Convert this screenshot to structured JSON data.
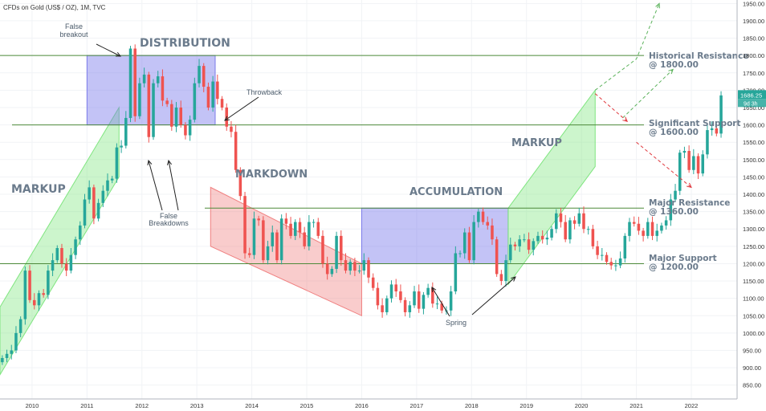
{
  "chart_data": {
    "type": "candlestick",
    "title": "CFDs on Gold (US$ / OZ), 1M, TVC",
    "y_axis": {
      "range": [
        810,
        1960
      ],
      "ticks": [
        1950,
        1900,
        1850,
        1800,
        1750,
        1700,
        1650,
        1600,
        1550,
        1500,
        1450,
        1400,
        1350,
        1300,
        1250,
        1200,
        1150,
        1100,
        1050,
        1000,
        950,
        900,
        850
      ],
      "tick_labels": [
        "1950.00",
        "1900.00",
        "1850.00",
        "1800.00",
        "1750.00",
        "1700.00",
        "1650.00",
        "1600.00",
        "1550.00",
        "1500.00",
        "1450.00",
        "1400.00",
        "1350.00",
        "1300.00",
        "1250.00",
        "1200.00",
        "1150.00",
        "1100.00",
        "1050.00",
        "1000.00",
        "950.00",
        "900.00",
        "850.00"
      ],
      "position": "right"
    },
    "x_axis": {
      "range": [
        "2009-06",
        "2022-11"
      ],
      "ticks": [
        "2010-01",
        "2011-01",
        "2012-01",
        "2013-01",
        "2014-01",
        "2015-01",
        "2016-01",
        "2017-01",
        "2018-01",
        "2019-01",
        "2020-01",
        "2021-01",
        "2022-01"
      ],
      "tick_labels": [
        "2010",
        "2011",
        "2012",
        "2013",
        "2014",
        "2015",
        "2016",
        "2017",
        "2018",
        "2019",
        "2020",
        "2021",
        "2022"
      ]
    },
    "last_price": {
      "label": "1686.25",
      "timer": "9d 3h",
      "value": 1686.25
    },
    "monthly_closes": [
      {
        "start": "2009-06",
        "closes": [
          928,
          940,
          950,
          1000,
          1040,
          1180,
          1095,
          1080,
          1115,
          1110,
          1180,
          1210,
          1245,
          1200,
          1180,
          1225,
          1270,
          1310,
          1385,
          1420,
          1330,
          1375,
          1410,
          1440,
          1445,
          1535,
          1540,
          1620,
          1820,
          1625,
          1720,
          1745,
          1565,
          1720,
          1740,
          1670,
          1660,
          1595,
          1650,
          1600,
          1570,
          1615,
          1720,
          1770,
          1710,
          1650,
          1725,
          1675,
          1650,
          1595,
          1580,
          1470,
          1395,
          1230,
          1225,
          1330,
          1325,
          1210,
          1250,
          1290,
          1210,
          1330,
          1315,
          1280,
          1320,
          1290,
          1250,
          1320,
          1320,
          1280,
          1200,
          1170,
          1185,
          1280,
          1210,
          1180,
          1205,
          1180,
          1180,
          1210,
          1160,
          1130,
          1080,
          1060,
          1100,
          1140,
          1120,
          1095,
          1060,
          1080,
          1120,
          1070,
          1110,
          1130,
          1085,
          1085,
          1065,
          1065,
          1120,
          1230,
          1230,
          1290,
          1210,
          1320,
          1350,
          1320,
          1310,
          1270,
          1170,
          1150,
          1210,
          1255,
          1250,
          1270,
          1270,
          1240,
          1265,
          1280,
          1270,
          1275,
          1300,
          1345,
          1320,
          1270,
          1325,
          1315,
          1345,
          1300,
          1300,
          1250,
          1225,
          1225,
          1205,
          1195,
          1195,
          1215,
          1280,
          1320,
          1315,
          1295,
          1280,
          1320,
          1280,
          1295,
          1310,
          1325,
          1385,
          1410,
          1520,
          1525,
          1470,
          1510,
          1460,
          1515,
          1585,
          1590,
          1575,
          1685
        ]
      }
    ],
    "horizontal_levels": [
      {
        "value": 1800,
        "label_lines": [
          "Historical Resistance",
          "@ 1800.00"
        ]
      },
      {
        "value": 1600,
        "label_lines": [
          "Significant Support",
          "@ 1600.00"
        ]
      },
      {
        "value": 1360,
        "label_lines": [
          "Major Resistance",
          "@ 1360.00"
        ]
      },
      {
        "value": 1200,
        "label_lines": [
          "Major Support",
          "@ 1200.00"
        ]
      }
    ],
    "phases": [
      {
        "label": "MARKUP",
        "kind": "channel",
        "color": "#7fe57f",
        "from": "2009-06",
        "to": "2011-08",
        "bottom_start": 880,
        "bottom_end": 1450,
        "top_start": 1075,
        "top_end": 1650
      },
      {
        "label": "DISTRIBUTION",
        "kind": "box",
        "color": "#7b7bea",
        "from": "2011-01",
        "to": "2013-05",
        "low": 1600,
        "high": 1800
      },
      {
        "label": "MARKDOWN",
        "kind": "channel",
        "color": "#f08080",
        "from": "2013-04",
        "to": "2016-01",
        "bottom_start": 1250,
        "bottom_end": 1050,
        "top_start": 1420,
        "top_end": 1200
      },
      {
        "label": "ACCUMULATION",
        "kind": "box",
        "color": "#7b7bea",
        "from": "2016-01",
        "to": "2018-09",
        "low": 1200,
        "high": 1360
      },
      {
        "label": "MARKUP",
        "kind": "channel",
        "color": "#7fe57f",
        "from": "2018-09",
        "to": "2020-04",
        "bottom_start": 1140,
        "bottom_end": 1480,
        "top_start": 1360,
        "top_end": 1700
      }
    ],
    "annotations": [
      {
        "lines": [
          "False",
          "breakout"
        ]
      },
      {
        "lines": [
          "Throwback"
        ]
      },
      {
        "lines": [
          "False",
          "Breakdowns"
        ]
      },
      {
        "lines": [
          "Spring"
        ]
      }
    ],
    "projections": [
      {
        "color": "green",
        "from": [
          "2020-04",
          1700
        ],
        "via": [
          "2021-01",
          1790
        ],
        "to": [
          "2021-06",
          1950
        ]
      },
      {
        "color": "green",
        "from": [
          "2020-10",
          1620
        ],
        "to": [
          "2021-09",
          1760
        ]
      },
      {
        "color": "red",
        "from": [
          "2020-04",
          1690
        ],
        "to": [
          "2020-11",
          1610
        ]
      },
      {
        "color": "red",
        "from": [
          "2021-01",
          1550
        ],
        "to": [
          "2022-01",
          1420
        ]
      }
    ]
  }
}
